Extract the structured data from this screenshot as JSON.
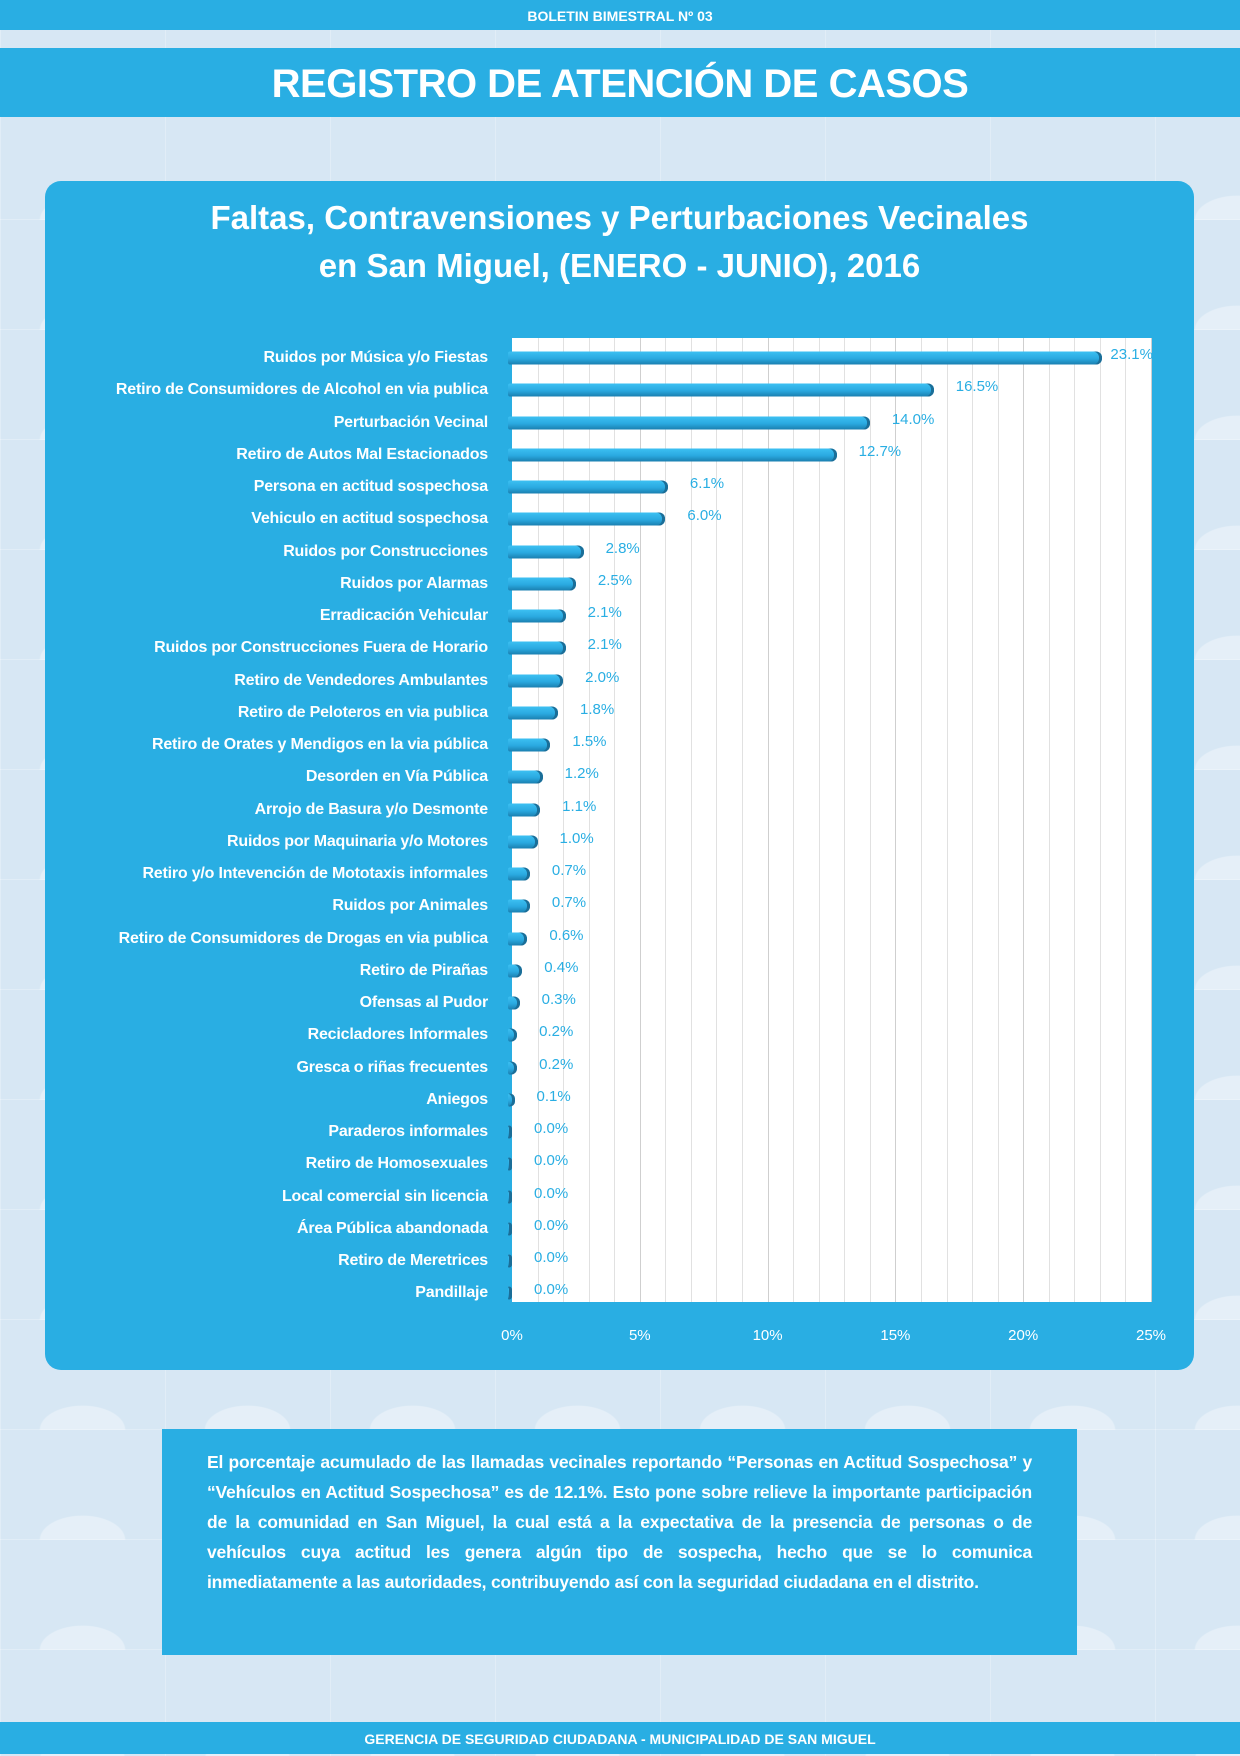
{
  "header": {
    "bulletin": "BOLETIN BIMESTRAL Nº 03",
    "title": "REGISTRO DE ATENCIÓN DE CASOS"
  },
  "chart_data": {
    "type": "bar",
    "orientation": "horizontal",
    "title_line1": "Faltas, Contravensiones y Perturbaciones Vecinales",
    "title_line2": "en San Miguel,  (ENERO - JUNIO), 2016",
    "categories": [
      "Ruidos por Música y/o Fiestas",
      "Retiro de Consumidores de Alcohol en via publica",
      "Perturbación Vecinal",
      "Retiro de Autos Mal Estacionados",
      "Persona en actitud sospechosa",
      "Vehiculo en actitud sospechosa",
      "Ruidos por Construcciones",
      "Ruidos por Alarmas",
      "Erradicación Vehicular",
      "Ruidos por Construcciones Fuera de Horario",
      "Retiro de Vendedores Ambulantes",
      "Retiro de Peloteros en via publica",
      "Retiro de Orates y Mendigos en la via pública",
      "Desorden en Vía Pública",
      "Arrojo de Basura y/o Desmonte",
      "Ruidos por Maquinaria y/o Motores",
      "Retiro y/o Intevención de Mototaxis informales",
      "Ruidos por Animales",
      "Retiro de Consumidores de Drogas en via publica",
      "Retiro de Pirañas",
      "Ofensas al Pudor",
      "Recicladores Informales",
      "Gresca o riñas frecuentes",
      "Aniegos",
      "Paraderos informales",
      "Retiro de Homosexuales",
      "Local comercial sin licencia",
      "Área Pública abandonada",
      "Retiro de Meretrices",
      "Pandillaje"
    ],
    "values": [
      23.1,
      16.5,
      14.0,
      12.7,
      6.1,
      6.0,
      2.8,
      2.5,
      2.1,
      2.1,
      2.0,
      1.8,
      1.5,
      1.2,
      1.1,
      1.0,
      0.7,
      0.7,
      0.6,
      0.4,
      0.3,
      0.2,
      0.2,
      0.1,
      0.0,
      0.0,
      0.0,
      0.0,
      0.0,
      0.0
    ],
    "value_labels": [
      "23.1%",
      "16.5%",
      "14.0%",
      "12.7%",
      "6.1%",
      "6.0%",
      "2.8%",
      "2.5%",
      "2.1%",
      "2.1%",
      "2.0%",
      "1.8%",
      "1.5%",
      "1.2%",
      "1.1%",
      "1.0%",
      "0.7%",
      "0.7%",
      "0.6%",
      "0.4%",
      "0.3%",
      "0.2%",
      "0.2%",
      "0.1%",
      "0.0%",
      "0.0%",
      "0.0%",
      "0.0%",
      "0.0%",
      "0.0%"
    ],
    "xlim": [
      0,
      25
    ],
    "x_ticks": [
      "0%",
      "5%",
      "10%",
      "15%",
      "20%",
      "25%"
    ],
    "grid": true,
    "bar_color": "#29aee3"
  },
  "note": "El porcentaje acumulado de las llamadas vecinales reportando “Personas en Actitud Sospechosa” y “Vehículos en Actitud Sospechosa” es de 12.1%.  Esto pone sobre relieve la importante participación de la comunidad en San Miguel, la cual está a la expectativa de la presencia de personas o de vehículos cuya actitud les genera algún tipo de sospecha, hecho que se lo comunica inmediatamente a las autoridades, contribuyendo así con la seguridad ciudadana en el distrito.",
  "footer": "GERENCIA DE SEGURIDAD CIUDADANA - MUNICIPALIDAD DE SAN MIGUEL"
}
